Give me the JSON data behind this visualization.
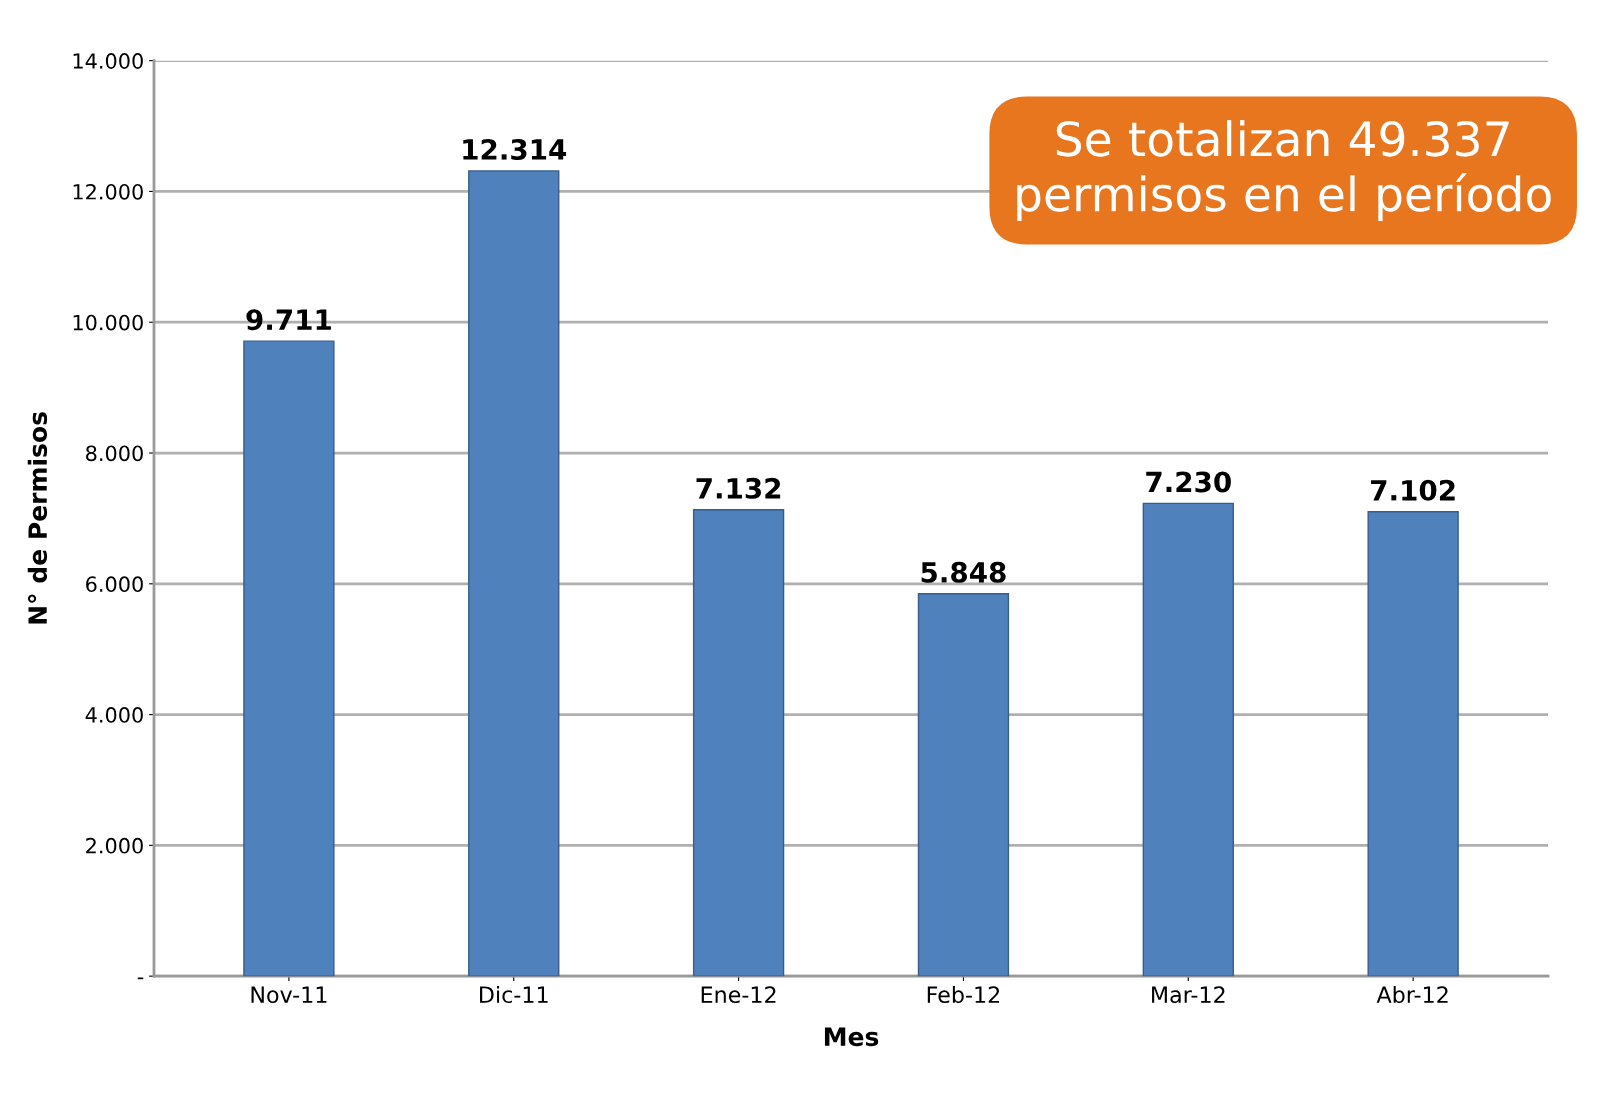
{
  "chart_data": {
    "type": "bar",
    "xlabel": "Mes",
    "ylabel": "N° de Permisos",
    "categories": [
      "Nov-11",
      "Dic-11",
      "Ene-12",
      "Feb-12",
      "Mar-12",
      "Abr-12"
    ],
    "values": [
      9711,
      12314,
      7132,
      5848,
      7230,
      7102
    ],
    "value_labels": [
      "9.711",
      "12.314",
      "7.132",
      "5.848",
      "7.230",
      "7.102"
    ],
    "color": "#4f81bd",
    "ylim": [
      0,
      14000
    ],
    "yticks": [
      {
        "value": 0,
        "label": "-"
      },
      {
        "value": 2000,
        "label": "2.000"
      },
      {
        "value": 4000,
        "label": "4.000"
      },
      {
        "value": 6000,
        "label": "6.000"
      },
      {
        "value": 8000,
        "label": "8.000"
      },
      {
        "value": 10000,
        "label": "10.000"
      },
      {
        "value": 12000,
        "label": "12.000"
      },
      {
        "value": 14000,
        "label": "14.000"
      }
    ],
    "grid": "y",
    "annotations": [
      "Se totalizan 49.337\npermisos en el período"
    ]
  }
}
